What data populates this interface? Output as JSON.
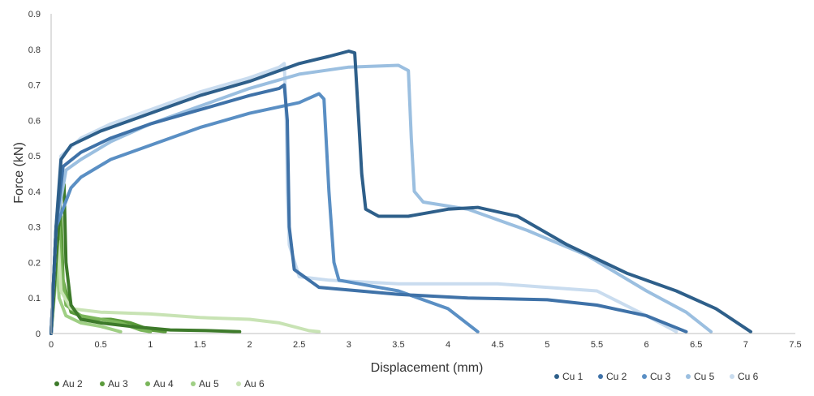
{
  "chart_data": {
    "type": "line",
    "title": "",
    "xlabel": "Displacement (mm)",
    "ylabel": "Force (kN)",
    "xlim": [
      0,
      7.5
    ],
    "ylim": [
      0,
      0.9
    ],
    "x_ticks": [
      "0",
      "0.5",
      "1",
      "1.5",
      "2",
      "2.5",
      "3",
      "3.5",
      "4",
      "4.5",
      "5",
      "5.5",
      "6",
      "6.5",
      "7",
      "7.5"
    ],
    "y_ticks": [
      "0",
      "0.1",
      "0.2",
      "0.3",
      "0.4",
      "0.5",
      "0.6",
      "0.7",
      "0.8",
      "0.9"
    ],
    "grid": false,
    "legend_position": "bottom",
    "series": [
      {
        "name": "Cu 1",
        "color": "#2e5f8a",
        "group": "cu",
        "points": [
          [
            0,
            0
          ],
          [
            0.05,
            0.3
          ],
          [
            0.1,
            0.49
          ],
          [
            0.2,
            0.53
          ],
          [
            0.5,
            0.57
          ],
          [
            1,
            0.62
          ],
          [
            1.5,
            0.67
          ],
          [
            2,
            0.71
          ],
          [
            2.5,
            0.76
          ],
          [
            2.8,
            0.78
          ],
          [
            3.0,
            0.795
          ],
          [
            3.06,
            0.79
          ],
          [
            3.1,
            0.6
          ],
          [
            3.13,
            0.45
          ],
          [
            3.17,
            0.35
          ],
          [
            3.3,
            0.33
          ],
          [
            3.6,
            0.33
          ],
          [
            4,
            0.35
          ],
          [
            4.3,
            0.355
          ],
          [
            4.7,
            0.33
          ],
          [
            5.2,
            0.25
          ],
          [
            5.8,
            0.17
          ],
          [
            6.3,
            0.12
          ],
          [
            6.7,
            0.07
          ],
          [
            7.05,
            0.005
          ]
        ]
      },
      {
        "name": "Cu 2",
        "color": "#3f72a8",
        "group": "cu",
        "points": [
          [
            0,
            0
          ],
          [
            0.05,
            0.3
          ],
          [
            0.12,
            0.47
          ],
          [
            0.3,
            0.51
          ],
          [
            0.6,
            0.55
          ],
          [
            1,
            0.59
          ],
          [
            1.5,
            0.63
          ],
          [
            2,
            0.67
          ],
          [
            2.3,
            0.69
          ],
          [
            2.35,
            0.7
          ],
          [
            2.38,
            0.6
          ],
          [
            2.39,
            0.45
          ],
          [
            2.4,
            0.3
          ],
          [
            2.45,
            0.18
          ],
          [
            2.7,
            0.13
          ],
          [
            3.5,
            0.11
          ],
          [
            4.2,
            0.1
          ],
          [
            5,
            0.095
          ],
          [
            5.5,
            0.08
          ],
          [
            6,
            0.05
          ],
          [
            6.4,
            0.005
          ]
        ]
      },
      {
        "name": "Cu 3",
        "color": "#5a8fc4",
        "group": "cu",
        "points": [
          [
            0,
            0
          ],
          [
            0.05,
            0.3
          ],
          [
            0.2,
            0.41
          ],
          [
            0.3,
            0.44
          ],
          [
            0.6,
            0.49
          ],
          [
            1,
            0.53
          ],
          [
            1.5,
            0.58
          ],
          [
            2,
            0.62
          ],
          [
            2.5,
            0.65
          ],
          [
            2.7,
            0.675
          ],
          [
            2.75,
            0.66
          ],
          [
            2.8,
            0.4
          ],
          [
            2.85,
            0.2
          ],
          [
            2.9,
            0.15
          ],
          [
            3.1,
            0.14
          ],
          [
            3.5,
            0.12
          ],
          [
            4,
            0.07
          ],
          [
            4.3,
            0.005
          ]
        ]
      },
      {
        "name": "Cu 5",
        "color": "#9bbfe0",
        "group": "cu",
        "points": [
          [
            0,
            0
          ],
          [
            0.05,
            0.3
          ],
          [
            0.15,
            0.46
          ],
          [
            0.3,
            0.49
          ],
          [
            0.6,
            0.54
          ],
          [
            1,
            0.59
          ],
          [
            1.5,
            0.64
          ],
          [
            2,
            0.69
          ],
          [
            2.5,
            0.73
          ],
          [
            3,
            0.75
          ],
          [
            3.5,
            0.755
          ],
          [
            3.6,
            0.74
          ],
          [
            3.63,
            0.55
          ],
          [
            3.66,
            0.4
          ],
          [
            3.75,
            0.37
          ],
          [
            4.2,
            0.35
          ],
          [
            4.8,
            0.29
          ],
          [
            5.4,
            0.22
          ],
          [
            6,
            0.12
          ],
          [
            6.4,
            0.06
          ],
          [
            6.65,
            0.005
          ]
        ]
      },
      {
        "name": "Cu 6",
        "color": "#c9dcef",
        "group": "cu",
        "points": [
          [
            0,
            0
          ],
          [
            0.05,
            0.3
          ],
          [
            0.1,
            0.5
          ],
          [
            0.3,
            0.55
          ],
          [
            0.6,
            0.59
          ],
          [
            1,
            0.63
          ],
          [
            1.5,
            0.68
          ],
          [
            2,
            0.72
          ],
          [
            2.3,
            0.75
          ],
          [
            2.35,
            0.76
          ],
          [
            2.37,
            0.6
          ],
          [
            2.38,
            0.4
          ],
          [
            2.4,
            0.25
          ],
          [
            2.5,
            0.16
          ],
          [
            2.8,
            0.15
          ],
          [
            3.5,
            0.14
          ],
          [
            4.5,
            0.14
          ],
          [
            5,
            0.13
          ],
          [
            5.5,
            0.12
          ],
          [
            6,
            0.05
          ],
          [
            6.3,
            0.005
          ]
        ]
      },
      {
        "name": "Au 2",
        "color": "#3d7a2a",
        "group": "au",
        "points": [
          [
            0,
            0
          ],
          [
            0.05,
            0.2
          ],
          [
            0.1,
            0.4
          ],
          [
            0.13,
            0.42
          ],
          [
            0.15,
            0.2
          ],
          [
            0.2,
            0.08
          ],
          [
            0.3,
            0.04
          ],
          [
            0.5,
            0.03
          ],
          [
            0.8,
            0.02
          ],
          [
            1.2,
            0.01
          ],
          [
            1.6,
            0.008
          ],
          [
            1.9,
            0.005
          ]
        ]
      },
      {
        "name": "Au 3",
        "color": "#5a9a3a",
        "group": "au",
        "points": [
          [
            0,
            0
          ],
          [
            0.05,
            0.25
          ],
          [
            0.1,
            0.33
          ],
          [
            0.12,
            0.15
          ],
          [
            0.2,
            0.06
          ],
          [
            0.4,
            0.04
          ],
          [
            0.6,
            0.04
          ],
          [
            0.8,
            0.03
          ],
          [
            1,
            0.01
          ],
          [
            1.15,
            0.005
          ]
        ]
      },
      {
        "name": "Au 4",
        "color": "#7ab55a",
        "group": "au",
        "points": [
          [
            0,
            0
          ],
          [
            0.04,
            0.15
          ],
          [
            0.08,
            0.3
          ],
          [
            0.1,
            0.2
          ],
          [
            0.15,
            0.08
          ],
          [
            0.3,
            0.05
          ],
          [
            0.5,
            0.04
          ],
          [
            0.7,
            0.03
          ],
          [
            0.9,
            0.01
          ],
          [
            1.0,
            0.005
          ]
        ]
      },
      {
        "name": "Au 5",
        "color": "#9fcf84",
        "group": "au",
        "points": [
          [
            0,
            0
          ],
          [
            0.03,
            0.1
          ],
          [
            0.06,
            0.2
          ],
          [
            0.08,
            0.1
          ],
          [
            0.15,
            0.05
          ],
          [
            0.3,
            0.03
          ],
          [
            0.5,
            0.02
          ],
          [
            0.7,
            0.005
          ]
        ]
      },
      {
        "name": "Au 6",
        "color": "#c8e3b4",
        "group": "au",
        "points": [
          [
            0,
            0
          ],
          [
            0.04,
            0.2
          ],
          [
            0.07,
            0.26
          ],
          [
            0.1,
            0.12
          ],
          [
            0.2,
            0.07
          ],
          [
            0.5,
            0.06
          ],
          [
            1,
            0.055
          ],
          [
            1.5,
            0.045
          ],
          [
            2,
            0.04
          ],
          [
            2.3,
            0.03
          ],
          [
            2.6,
            0.008
          ],
          [
            2.7,
            0.005
          ]
        ]
      }
    ]
  }
}
